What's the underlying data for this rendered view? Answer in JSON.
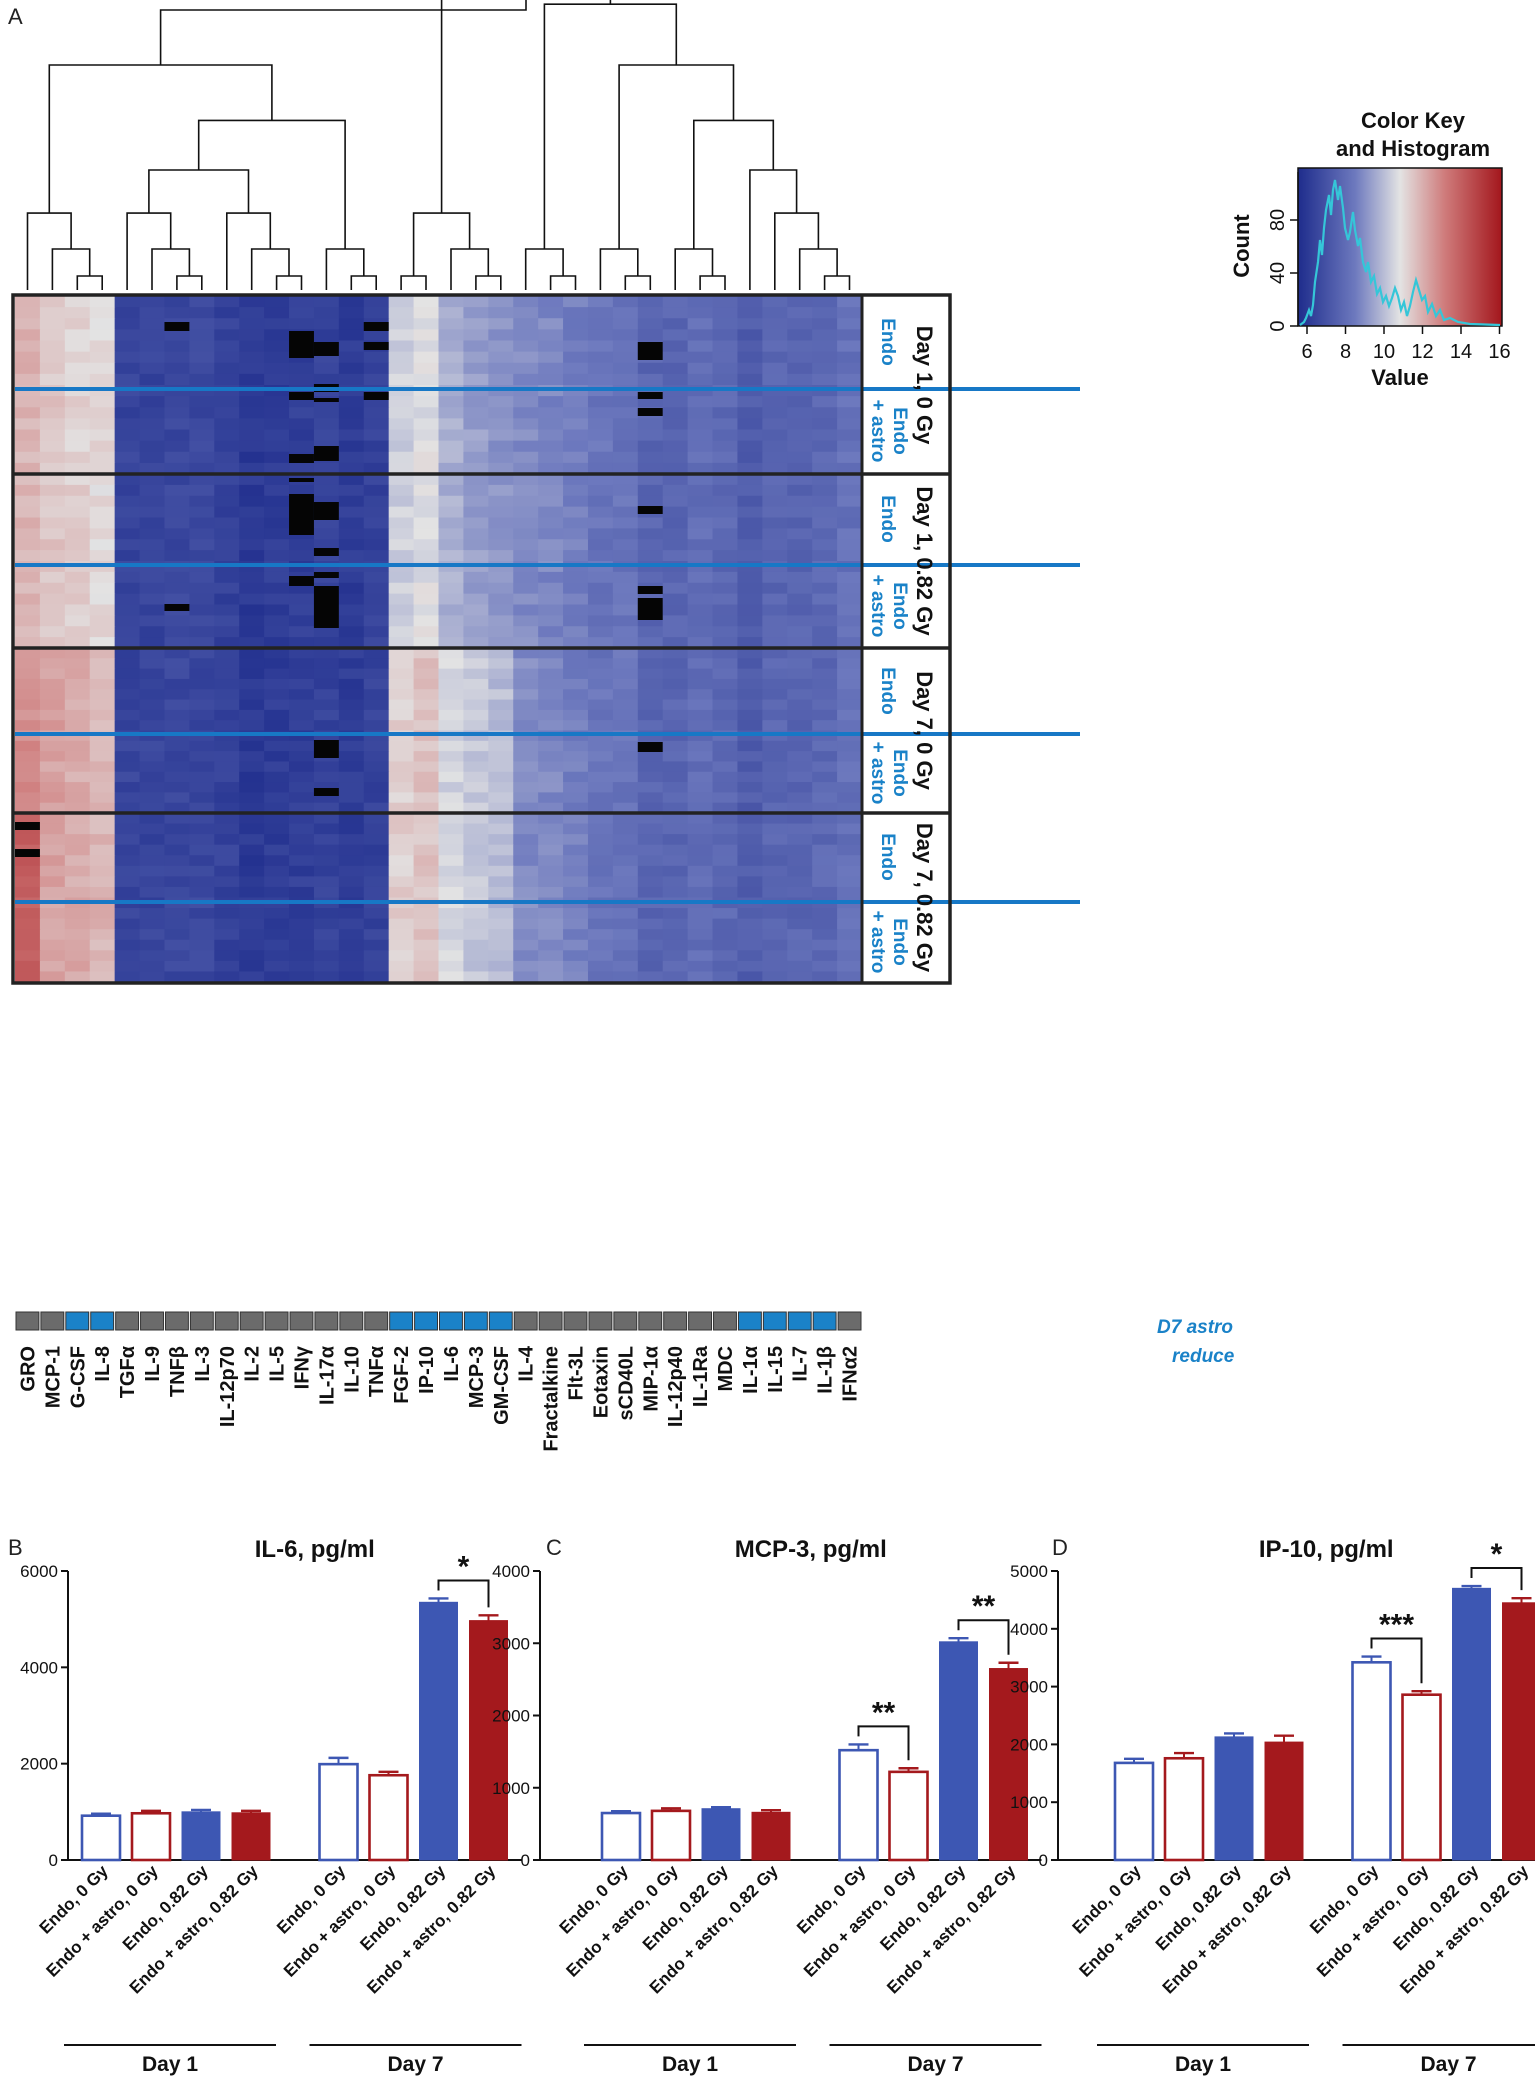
{
  "panels": {
    "a": "A",
    "b": "B",
    "c": "C",
    "d": "D"
  },
  "heatmap": {
    "columns": [
      "GRO",
      "MCP-1",
      "G-CSF",
      "IL-8",
      "TGFα",
      "IL-9",
      "TNFβ",
      "IL-3",
      "IL-12p70",
      "IL-2",
      "IL-5",
      "IFNγ",
      "IL-17α",
      "IL-10",
      "TNFα",
      "FGF-2",
      "IP-10",
      "IL-6",
      "MCP-3",
      "GM-CSF",
      "IL-4",
      "Fractalkine",
      "Flt-3L",
      "Eotaxin",
      "sCD40L",
      "MIP-1α",
      "IL-12p40",
      "IL-1Ra",
      "MDC",
      "IL-1α",
      "IL-15",
      "IL-7",
      "IL-1β",
      "IFNα2"
    ],
    "column_values": [
      12.0,
      11.6,
      11.4,
      11.2,
      6.9,
      6.9,
      7.0,
      7.0,
      6.8,
      6.5,
      6.6,
      6.7,
      6.8,
      6.6,
      6.8,
      10.6,
      10.9,
      9.9,
      9.6,
      9.4,
      9.2,
      9.1,
      8.9,
      8.6,
      8.6,
      8.1,
      8.1,
      8.4,
      8.2,
      7.8,
      8.1,
      8.1,
      8.2,
      8.5
    ],
    "d7_astro_reduce": [
      false,
      false,
      true,
      true,
      false,
      false,
      false,
      false,
      false,
      false,
      false,
      false,
      false,
      false,
      false,
      true,
      true,
      true,
      true,
      true,
      false,
      false,
      false,
      false,
      false,
      false,
      false,
      false,
      false,
      true,
      true,
      true,
      true,
      false
    ],
    "groups": [
      {
        "day": "Day 1, 0 Gy",
        "sub1": "Endo",
        "sub2a": "Endo",
        "sub2b": "+ astro"
      },
      {
        "day": "Day 1, 0.82 Gy",
        "sub1": "Endo",
        "sub2a": "Endo",
        "sub2b": "+ astro"
      },
      {
        "day": "Day 7, 0 Gy",
        "sub1": "Endo",
        "sub2a": "Endo",
        "sub2b": "+ astro"
      },
      {
        "day": "Day 7, 0.82 Gy",
        "sub1": "Endo",
        "sub2a": "Endo",
        "sub2b": "+ astro"
      }
    ],
    "legend_label_1": "D7 astro",
    "legend_label_2": "reduce"
  },
  "colorkey": {
    "title1": "Color Key",
    "title2": "and Histogram",
    "ylabel": "Count",
    "xlabel": "Value",
    "xticks": [
      "6",
      "8",
      "10",
      "12",
      "14",
      "16"
    ],
    "yticks": [
      "0",
      "40",
      "80"
    ]
  },
  "colors": {
    "blue": "#3d57b3",
    "red": "#a4191d",
    "line_blue": "#1778c6",
    "box_blue": "#1a82c8",
    "gray": "#6b6b6b"
  },
  "chart_data": [
    {
      "type": "bar",
      "title": "IL-6, pg/ml",
      "categories": [
        "Endo, 0 Gy",
        "Endo + astro, 0 Gy",
        "Endo, 0.82 Gy",
        "Endo + astro, 0.82 Gy",
        "Endo, 0 Gy",
        "Endo + astro, 0 Gy",
        "Endo, 0.82 Gy",
        "Endo + astro, 0.82 Gy"
      ],
      "values": [
        920,
        970,
        1000,
        980,
        1990,
        1760,
        5350,
        4970
      ],
      "errors": [
        40,
        50,
        40,
        40,
        130,
        70,
        80,
        110
      ],
      "ylim": [
        0,
        6000
      ],
      "yticks": [
        "0",
        "2000",
        "4000",
        "6000"
      ],
      "groups": [
        "Day 1",
        "Day 7"
      ],
      "significance": [
        {
          "from": 6,
          "to": 7,
          "label": "*"
        }
      ]
    },
    {
      "type": "bar",
      "title": "MCP-3, pg/ml",
      "categories": [
        "Endo, 0 Gy",
        "Endo + astro, 0 Gy",
        "Endo, 0.82 Gy",
        "Endo + astro, 0.82 Gy",
        "Endo, 0 Gy",
        "Endo + astro, 0 Gy",
        "Endo, 0.82 Gy",
        "Endo + astro, 0.82 Gy"
      ],
      "values": [
        650,
        680,
        710,
        660,
        1520,
        1220,
        3020,
        2650
      ],
      "errors": [
        25,
        35,
        20,
        30,
        80,
        50,
        50,
        80
      ],
      "ylim": [
        0,
        4000
      ],
      "yticks": [
        "0",
        "1000",
        "2000",
        "3000",
        "4000"
      ],
      "groups": [
        "Day 1",
        "Day 7"
      ],
      "significance": [
        {
          "from": 4,
          "to": 5,
          "label": "**"
        },
        {
          "from": 6,
          "to": 7,
          "label": "**"
        }
      ]
    },
    {
      "type": "bar",
      "title": "IP-10, pg/ml",
      "categories": [
        "Endo, 0 Gy",
        "Endo + astro, 0 Gy",
        "Endo, 0.82 Gy",
        "Endo + astro, 0.82 Gy",
        "Endo, 0 Gy",
        "Endo + astro, 0 Gy",
        "Endo, 0.82 Gy",
        "Endo + astro, 0.82 Gy"
      ],
      "values": [
        1680,
        1760,
        2130,
        2040,
        3420,
        2860,
        4700,
        4450
      ],
      "errors": [
        70,
        90,
        60,
        110,
        100,
        60,
        40,
        80
      ],
      "ylim": [
        0,
        5000
      ],
      "yticks": [
        "0",
        "1000",
        "2000",
        "3000",
        "4000",
        "5000"
      ],
      "groups": [
        "Day 1",
        "Day 7"
      ],
      "significance": [
        {
          "from": 4,
          "to": 5,
          "label": "***"
        },
        {
          "from": 6,
          "to": 7,
          "label": "*"
        }
      ]
    }
  ]
}
